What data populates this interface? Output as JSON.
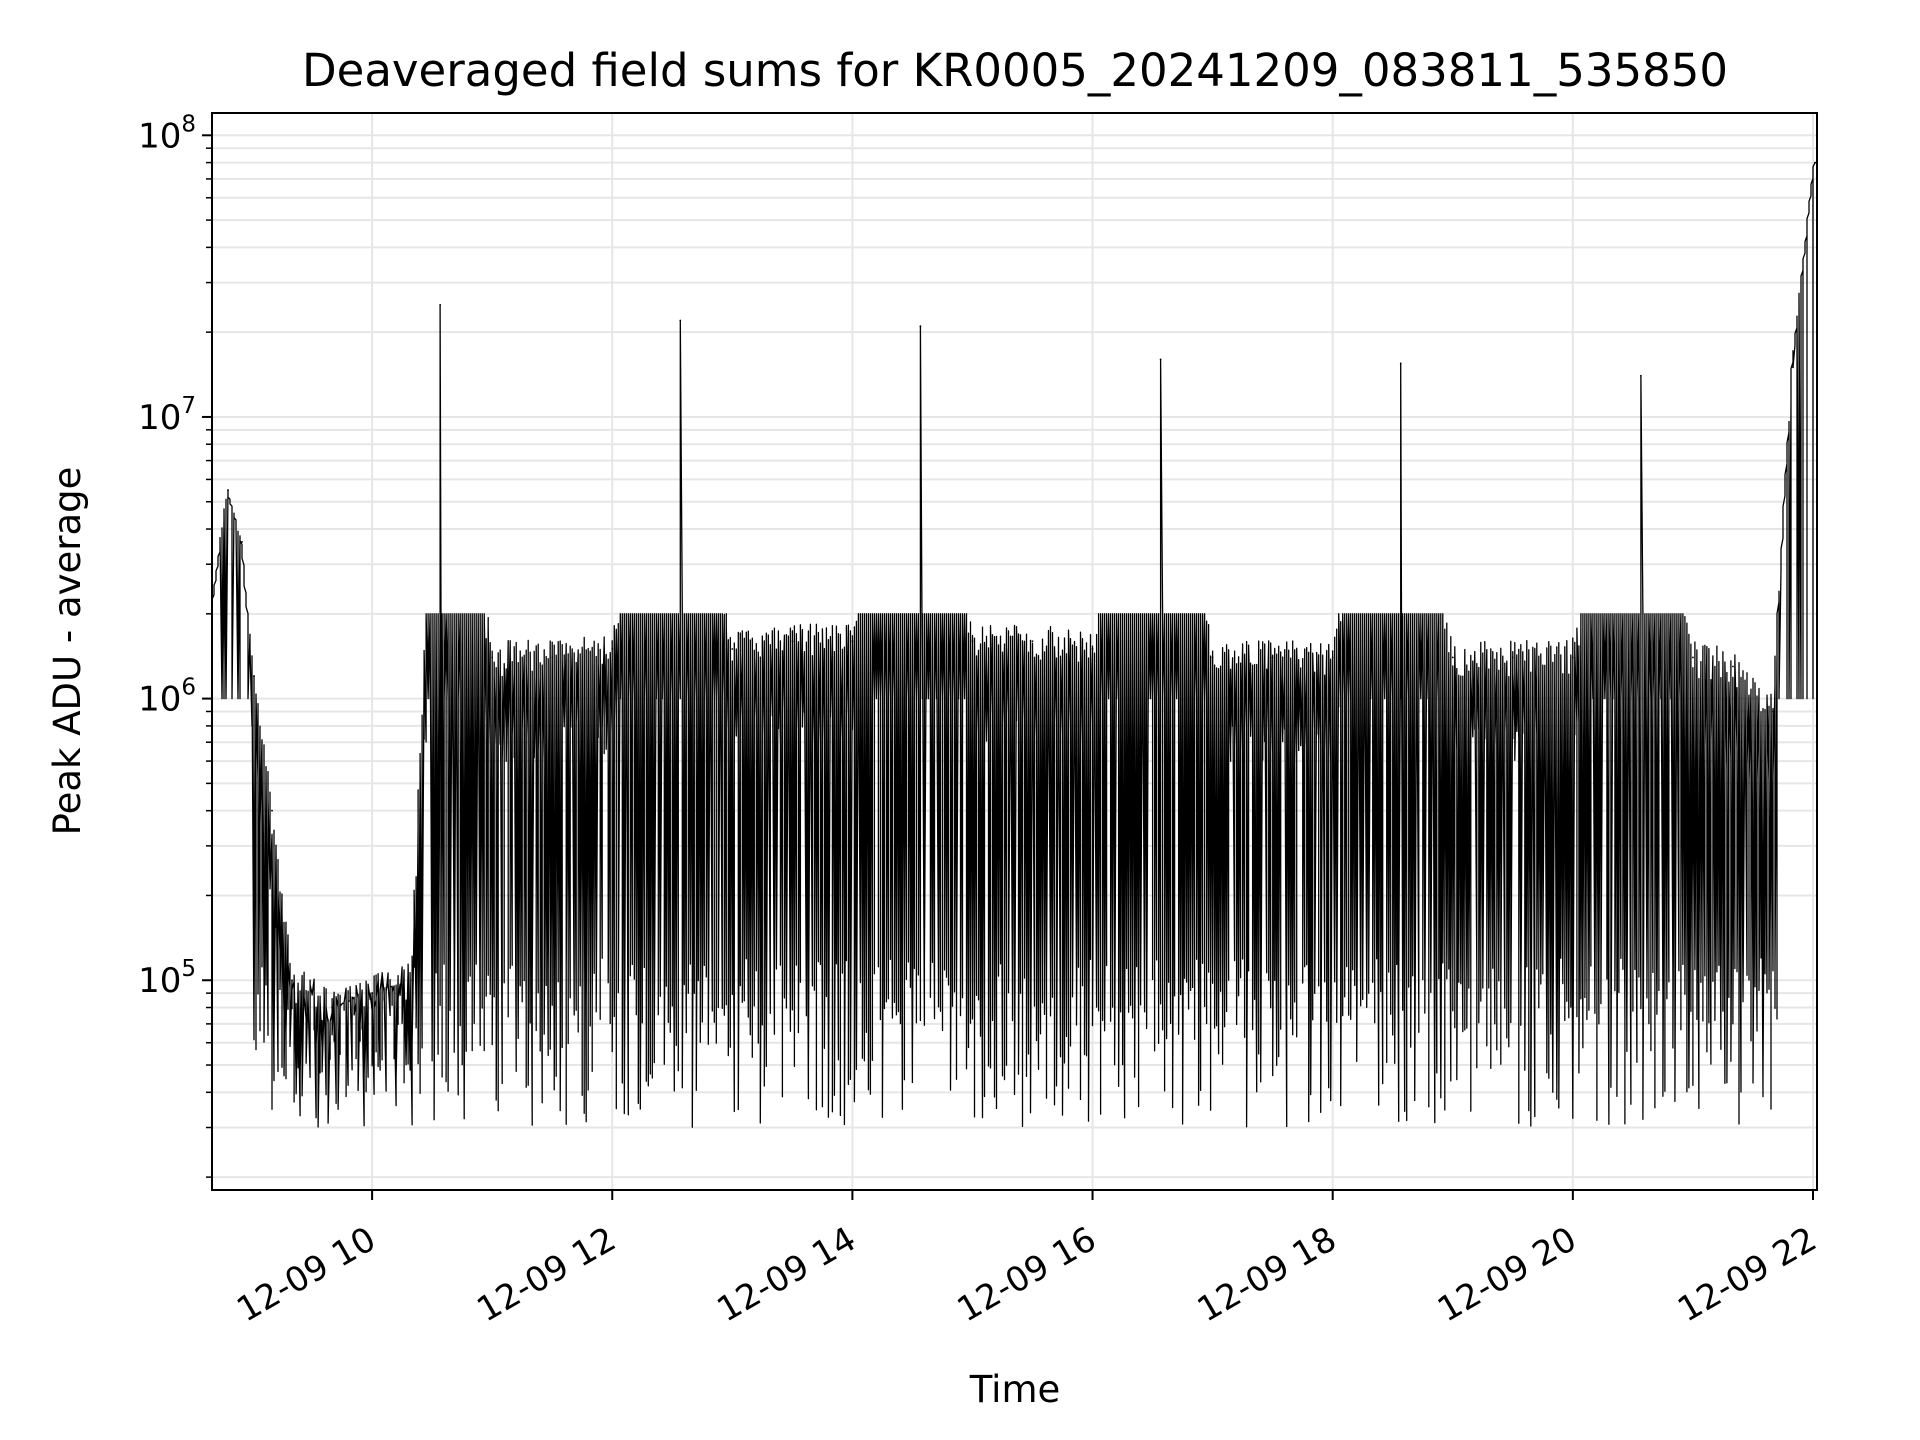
{
  "chart_data": {
    "type": "line",
    "title": "Deaveraged field sums for KR0005_20241209_083811_535850",
    "xlabel": "Time",
    "ylabel": "Peak ADU - average",
    "y_scale": "log",
    "ylim": [
      18000,
      120000000
    ],
    "xlim": [
      "2024-12-09 08:40",
      "2024-12-09 22:02"
    ],
    "x_ticks": [
      "2024-12-09 10:00",
      "2024-12-09 12:00",
      "2024-12-09 14:00",
      "2024-12-09 16:00",
      "2024-12-09 18:00",
      "2024-12-09 20:00",
      "2024-12-09 22:00"
    ],
    "x_tick_labels": [
      "12-09 10",
      "12-09 12",
      "12-09 14",
      "12-09 16",
      "12-09 18",
      "12-09 20",
      "12-09 22"
    ],
    "y_ticks": [
      100000,
      1000000,
      10000000,
      100000000
    ],
    "y_tick_base": "10",
    "y_tick_exponents": [
      "5",
      "6",
      "7",
      "8"
    ],
    "grid": true,
    "line_color": "#000000",
    "grid_color": "#e6e6e6",
    "series": [
      {
        "x": [
          "2024-12-09 08:40",
          "2024-12-09 08:48",
          "2024-12-09 08:55",
          "2024-12-09 09:01",
          "2024-12-09 09:10",
          "2024-12-09 09:20",
          "2024-12-09 09:40",
          "2024-12-09 10:00",
          "2024-12-09 10:20",
          "2024-12-09 10:34",
          "2024-12-09 11:00",
          "2024-12-09 11:30",
          "2024-12-09 12:00",
          "2024-12-09 12:34",
          "2024-12-09 13:00",
          "2024-12-09 13:30",
          "2024-12-09 14:00",
          "2024-12-09 14:34",
          "2024-12-09 15:00",
          "2024-12-09 15:30",
          "2024-12-09 16:00",
          "2024-12-09 16:34",
          "2024-12-09 17:00",
          "2024-12-09 17:30",
          "2024-12-09 18:00",
          "2024-12-09 18:34",
          "2024-12-09 19:00",
          "2024-12-09 19:30",
          "2024-12-09 20:00",
          "2024-12-09 20:34",
          "2024-12-09 21:00",
          "2024-12-09 21:20",
          "2024-12-09 21:40",
          "2024-12-09 21:50",
          "2024-12-09 22:01"
        ],
        "y": [
          2000000,
          5500000,
          3600000,
          1200000,
          400000,
          100000,
          80000,
          90000,
          100000,
          25000000,
          1400000,
          1400000,
          1500000,
          22000000,
          1500000,
          1600000,
          1600000,
          21000000,
          1600000,
          1600000,
          1500000,
          16000000,
          1400000,
          1400000,
          1400000,
          15500000,
          1400000,
          1400000,
          1400000,
          14000000,
          1400000,
          1300000,
          900000,
          15000000,
          80000000
        ]
      }
    ]
  }
}
